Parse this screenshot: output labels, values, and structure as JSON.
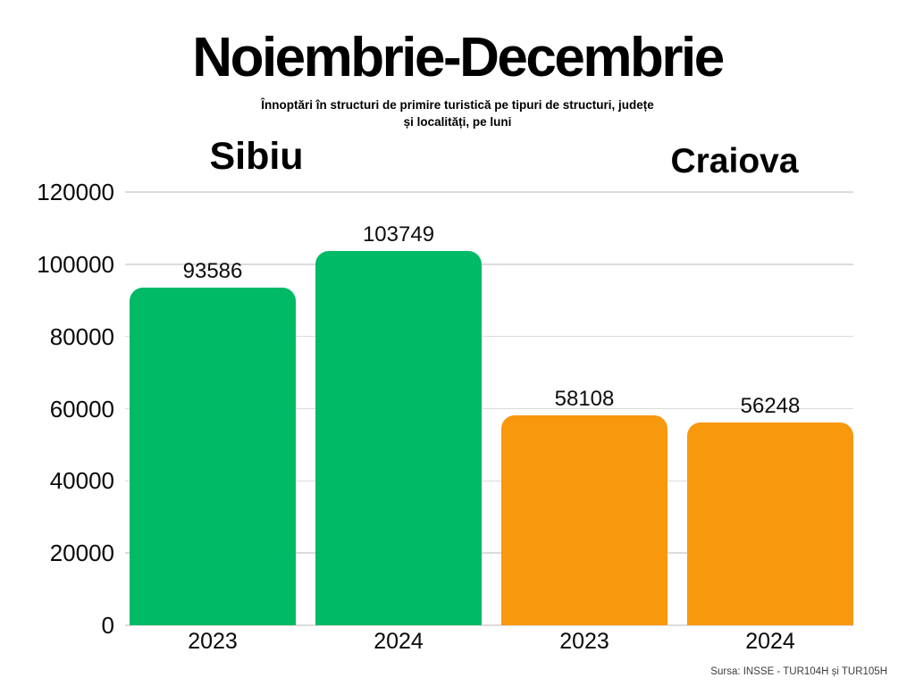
{
  "header": {
    "title": "Noiembrie-Decembrie",
    "subtitle_line1": "Înnoptări în structuri de primire turistică pe tipuri de structuri, județe",
    "subtitle_line2": "și localități, pe luni"
  },
  "footer": {
    "source": "Sursa: INSSE - TUR104H și TUR105H"
  },
  "colors": {
    "sibiu_green": "#00ba66",
    "craiova_orange": "#f8980d",
    "gridline": "#dcdcdc",
    "text": "#000000"
  },
  "chart_data": {
    "type": "bar",
    "title": "Noiembrie-Decembrie",
    "subtitle": "Înnoptări în structuri de primire turistică pe tipuri de structuri, județe și localități, pe luni",
    "source": "Sursa: INSSE - TUR104H și TUR105H",
    "group_labels": [
      "Sibiu",
      "Craiova"
    ],
    "categories": [
      "2023",
      "2024",
      "2023",
      "2024"
    ],
    "series": [
      {
        "name": "Sibiu",
        "color": "#00ba66",
        "values": [
          93586,
          103749
        ]
      },
      {
        "name": "Craiova",
        "color": "#f8980d",
        "values": [
          58108,
          56248
        ]
      }
    ],
    "bars": [
      {
        "group": "Sibiu",
        "year": "2023",
        "value": 93586,
        "color": "#00ba66"
      },
      {
        "group": "Sibiu",
        "year": "2024",
        "value": 103749,
        "color": "#00ba66"
      },
      {
        "group": "Craiova",
        "year": "2023",
        "value": 58108,
        "color": "#f8980d"
      },
      {
        "group": "Craiova",
        "year": "2024",
        "value": 56248,
        "color": "#f8980d"
      }
    ],
    "ylim": [
      0,
      120000
    ],
    "yticks": [
      0,
      20000,
      40000,
      60000,
      80000,
      100000,
      120000
    ],
    "grid": true,
    "legend": "none"
  }
}
